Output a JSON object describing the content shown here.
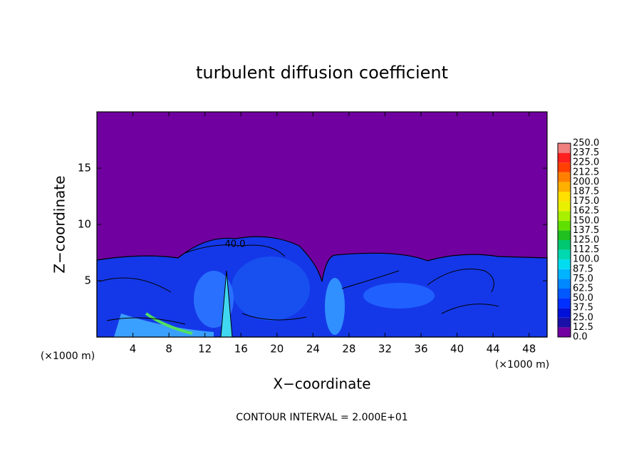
{
  "chart_data": {
    "type": "contour",
    "title": "turbulent diffusion coefficient",
    "x_label": "X−coordinate",
    "y_label": "Z−coordinate",
    "x_unit_label": "(×1000 m)",
    "y_unit_label": "(×1000 m)",
    "footer": "CONTOUR INTERVAL = 2.000E+01",
    "contour_label": "40.0",
    "background_color": "#7000a0",
    "xlim": [
      0,
      50
    ],
    "xticks": [
      4,
      8,
      12,
      16,
      20,
      24,
      28,
      32,
      36,
      40,
      44,
      48
    ],
    "ylim": [
      0,
      20
    ],
    "yticks": [
      5,
      10,
      15
    ],
    "colorbar": {
      "levels": [
        {
          "value": 0,
          "label": "0.0"
        },
        12.5,
        {
          "value": 25,
          "label": "25.0"
        },
        37.5,
        {
          "value": 50,
          "label": "50.0"
        },
        62.5,
        {
          "value": 75,
          "label": "75.0"
        },
        87.5,
        {
          "value": 100,
          "label": "100.0"
        },
        112.5,
        {
          "value": 125,
          "label": "125.0"
        },
        137.5,
        {
          "value": 150,
          "label": "150.0"
        },
        162.5,
        {
          "value": 175,
          "label": "175.0"
        },
        187.5,
        {
          "value": 200,
          "label": "200.0"
        },
        212.5,
        {
          "value": 225,
          "label": "225.0"
        },
        237.5,
        {
          "value": 250,
          "label": "250.0"
        }
      ],
      "colors": [
        "#7000a0",
        "#1a10a8",
        "#0010d8",
        "#0030ff",
        "#0058ff",
        "#0088ff",
        "#00b4ff",
        "#00dcf0",
        "#00d8b0",
        "#00c870",
        "#20c020",
        "#60e000",
        "#a8f000",
        "#e8f000",
        "#ffe000",
        "#ffb000",
        "#ff8000",
        "#ff4000",
        "#ff2020",
        "#f08080"
      ]
    }
  }
}
